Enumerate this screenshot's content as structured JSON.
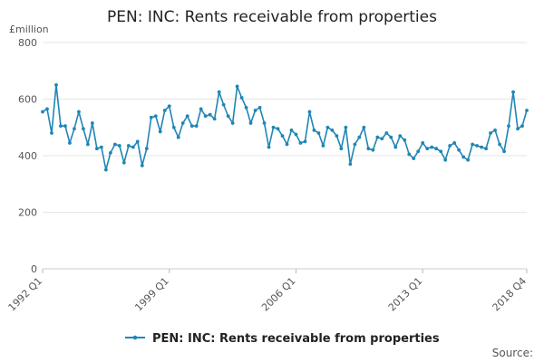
{
  "chart_data": {
    "type": "line",
    "title": "PEN: INC: Rents receivable from properties",
    "y_unit": "£million",
    "ylim": [
      0,
      800
    ],
    "y_ticks": [
      0,
      200,
      400,
      600,
      800
    ],
    "grid": "horizontal",
    "legend_position": "bottom",
    "x_start": "1992 Q1",
    "x_end": "2018 Q4",
    "x_tick_labels": [
      "1992 Q1",
      "1999 Q1",
      "2006 Q1",
      "2013 Q1",
      "2018 Q4"
    ],
    "series": [
      {
        "name": "PEN: INC: Rents receivable from properties",
        "color": "#1f86b5",
        "values": [
          555,
          565,
          480,
          650,
          505,
          505,
          445,
          495,
          555,
          495,
          440,
          515,
          425,
          430,
          350,
          410,
          440,
          435,
          375,
          435,
          430,
          450,
          365,
          425,
          535,
          540,
          485,
          560,
          575,
          500,
          465,
          515,
          540,
          505,
          505,
          565,
          540,
          545,
          530,
          625,
          580,
          540,
          515,
          645,
          605,
          570,
          515,
          560,
          570,
          515,
          430,
          500,
          495,
          470,
          440,
          490,
          475,
          445,
          450,
          555,
          490,
          480,
          435,
          500,
          490,
          470,
          425,
          500,
          370,
          440,
          465,
          500,
          425,
          420,
          465,
          460,
          480,
          465,
          430,
          470,
          455,
          405,
          390,
          415,
          445,
          425,
          430,
          425,
          415,
          385,
          435,
          445,
          420,
          395,
          385,
          440,
          435,
          430,
          425,
          480,
          490,
          440,
          415,
          505,
          625,
          495,
          505,
          560
        ]
      }
    ],
    "source_label": "Source:"
  }
}
